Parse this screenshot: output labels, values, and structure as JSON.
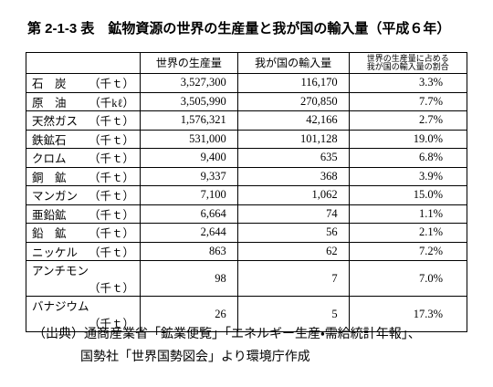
{
  "header": {
    "title": "第 2-1-3 表　鉱物資源の世界の生産量と我が国の輸入量（平成６年）"
  },
  "table": {
    "columns": [
      "世界の生産量",
      "我が国の輸入量",
      "世界の生産量に占める\n我が国の輸入量の割合"
    ],
    "rows": [
      {
        "name": "石　炭",
        "unit": "（千ｔ）",
        "cells": [
          "3,527,300",
          "116,170",
          "3.3%"
        ]
      },
      {
        "name": "原　油",
        "unit": "（千kℓ）",
        "cells": [
          "3,505,990",
          "270,850",
          "7.7%"
        ]
      },
      {
        "name": "天然ガス",
        "unit": "（千ｔ）",
        "cells": [
          "1,576,321",
          "42,166",
          "2.7%"
        ]
      },
      {
        "name": "鉄鉱石",
        "unit": "（千ｔ）",
        "cells": [
          "531,000",
          "101,128",
          "19.0%"
        ]
      },
      {
        "name": "クロム",
        "unit": "（千ｔ）",
        "cells": [
          "9,400",
          "635",
          "6.8%"
        ]
      },
      {
        "name": "銅　鉱",
        "unit": "（千ｔ）",
        "cells": [
          "9,337",
          "368",
          "3.9%"
        ]
      },
      {
        "name": "マンガン",
        "unit": "（千ｔ）",
        "cells": [
          "7,100",
          "1,062",
          "15.0%"
        ]
      },
      {
        "name": "亜鉛鉱",
        "unit": "（千ｔ）",
        "cells": [
          "6,664",
          "74",
          "1.1%"
        ]
      },
      {
        "name": "鉛　鉱",
        "unit": "（千ｔ）",
        "cells": [
          "2,644",
          "56",
          "2.1%"
        ]
      },
      {
        "name": "ニッケル",
        "unit": "（千ｔ）",
        "cells": [
          "863",
          "62",
          "7.2%"
        ]
      },
      {
        "name": "アンチモン",
        "unit": "（千ｔ）",
        "cells": [
          "98",
          "7",
          "7.0%"
        ]
      },
      {
        "name": "バナジウム",
        "unit": "（千ｔ）",
        "cells": [
          "26",
          "5",
          "17.3%"
        ]
      }
    ]
  },
  "source": {
    "lines": [
      "（出典）通商産業省「鉱業便覧」「エネルギー生産・需給統計年報」、",
      "国勢社「世界国勢図会」より環境庁作成"
    ]
  }
}
